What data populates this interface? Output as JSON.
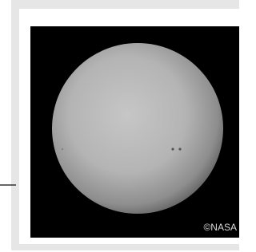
{
  "image": {
    "credit": "©NASA"
  }
}
